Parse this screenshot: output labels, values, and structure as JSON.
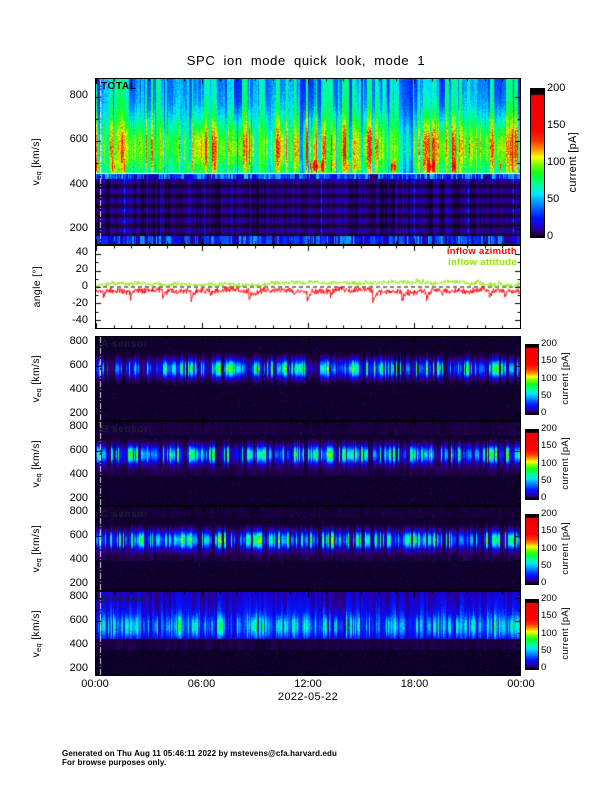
{
  "title": "SPC ion mode quick look, mode 1",
  "footer": {
    "line1": "Generated on Thu Aug 11 05:46:11 2022 by mstevens@cfa.harvard.edu",
    "line2": "For browse purposes only."
  },
  "chart_data": {
    "type": "heatmap",
    "description": "SPC ion mode quick-look: five time-vs-velocity current spectrograms (TOTAL plus A/B/C/D sensors) and one inflow-angle line panel covering 24 hours on 2022-05-22.",
    "x_axis": {
      "tick_labels": [
        "00:00",
        "06:00",
        "12:00",
        "18:00",
        "00:00"
      ],
      "date_label": "2022-05-22",
      "hours_span": 24
    },
    "colorbar": {
      "label": "current [pA]",
      "ticks": [
        200,
        150,
        100,
        50,
        0
      ],
      "min_pA": 0,
      "max_pA": 200
    },
    "colormap_stops": [
      [
        0.0,
        "#050018"
      ],
      [
        0.035,
        "#2e0068"
      ],
      [
        0.07,
        "#1e00c8"
      ],
      [
        0.13,
        "#0014ff"
      ],
      [
        0.21,
        "#0078ff"
      ],
      [
        0.29,
        "#00e6ff"
      ],
      [
        0.35,
        "#00ff9b"
      ],
      [
        0.43,
        "#0fff1e"
      ],
      [
        0.49,
        "#78ff00"
      ],
      [
        0.54,
        "#ffff00"
      ],
      [
        0.59,
        "#ff9600"
      ],
      [
        0.65,
        "#ff3200"
      ],
      [
        0.72,
        "#ff0000"
      ],
      [
        0.955,
        "#eb0000"
      ],
      [
        0.965,
        "#000000"
      ],
      [
        1.0,
        "#000000"
      ]
    ],
    "spectro_panels": [
      {
        "id": "total",
        "label": "TOTAL",
        "style": "total",
        "ylabel": {
          "pre": "v",
          "sub": "eq",
          "post": " [km/s]"
        },
        "vmin": 130,
        "vmax": 880,
        "yticks": [
          200,
          400,
          600,
          800
        ],
        "seed": 1234,
        "features": {
          "background_pA": 50,
          "main_band": {
            "center": 565,
            "sigma": 100,
            "peak": 36
          },
          "hotspot": {
            "center": 480,
            "sigma": 20,
            "peak": 62
          },
          "white_line_v": 450,
          "transition_band": {
            "vlo": 425,
            "vhi": 447,
            "pA": 28
          },
          "low_region_pA": 9.5,
          "bottom_stripe": {
            "vmax": 168,
            "pA": 26
          }
        }
      },
      {
        "id": "a",
        "label": "A sensor",
        "style": "sensor",
        "ylabel": {
          "pre": "v",
          "sub": "eq",
          "post": " [km/s]"
        },
        "vmin": 140,
        "vmax": 850,
        "yticks": [
          200,
          400,
          600,
          800
        ],
        "seed": 77,
        "features": {
          "background_pA": 1.4,
          "speckle": 0.12,
          "main_band": {
            "center": 578,
            "sigma": 50,
            "peak": 46
          }
        }
      },
      {
        "id": "b",
        "label": "B sensor",
        "style": "sensor",
        "ylabel": {
          "pre": "v",
          "sub": "eq",
          "post": " [km/s]"
        },
        "vmin": 140,
        "vmax": 850,
        "yticks": [
          200,
          400,
          600,
          800
        ],
        "seed": 301,
        "features": {
          "background_pA": 1.4,
          "speckle": 0.12,
          "main_band": {
            "center": 570,
            "sigma": 50,
            "peak": 46
          },
          "top_band": {
            "vmin": 740,
            "pA": 2.6
          },
          "sub_band": {
            "vmin": 390,
            "vmax": 470,
            "pA": 2.4
          }
        }
      },
      {
        "id": "c",
        "label": "C sensor",
        "style": "sensor",
        "ylabel": {
          "pre": "v",
          "sub": "eq",
          "post": " [km/s]"
        },
        "vmin": 140,
        "vmax": 850,
        "yticks": [
          200,
          400,
          600,
          800
        ],
        "seed": 902,
        "features": {
          "background_pA": 1.4,
          "speckle": 0.12,
          "main_band": {
            "center": 566,
            "sigma": 50,
            "peak": 48
          },
          "top_band": {
            "vmin": 760,
            "pA": 1.8
          },
          "sub_band": {
            "vmin": 390,
            "vmax": 470,
            "pA": 2.6
          }
        }
      },
      {
        "id": "d",
        "label": "D sensor",
        "style": "sensorD",
        "ylabel": {
          "pre": "v",
          "sub": "eq",
          "post": " [km/s]"
        },
        "vmin": 140,
        "vmax": 850,
        "yticks": [
          200,
          400,
          600,
          800
        ],
        "seed": 515,
        "features": {
          "background_pA": 1.2,
          "speckle": 0.12,
          "column_region": {
            "vmin": 445,
            "center": 620,
            "sigma": 210,
            "pA": 16,
            "base": 6
          },
          "main_band": {
            "center": 555,
            "sigma": 65,
            "peak": 42
          },
          "sub_band": {
            "vmin": 350,
            "vmax": 440,
            "pA": 2.6
          }
        }
      }
    ],
    "angle_panel": {
      "ylabel": "angle [°]",
      "ymin": -50,
      "ymax": 50,
      "yticks": [
        40,
        20,
        0,
        -20,
        -40
      ],
      "zero_line_dashed": true,
      "series": [
        {
          "name": "inflow azimuth",
          "color": "#ff0000",
          "base": -5,
          "slow": 1.1,
          "fast": 4.5,
          "spike_prob": 0.025,
          "spike_amp": 14,
          "spike_sign": -1,
          "min": -34,
          "max": 13,
          "seed": 42
        },
        {
          "name": "inflow attitude",
          "color": "#8ce600",
          "base": 3.5,
          "slow": 0.9,
          "fast": 3.2,
          "spike_prob": 0.008,
          "spike_amp": 6,
          "spike_sign": 1,
          "min": -12,
          "max": 17,
          "seed": 99
        }
      ]
    }
  }
}
